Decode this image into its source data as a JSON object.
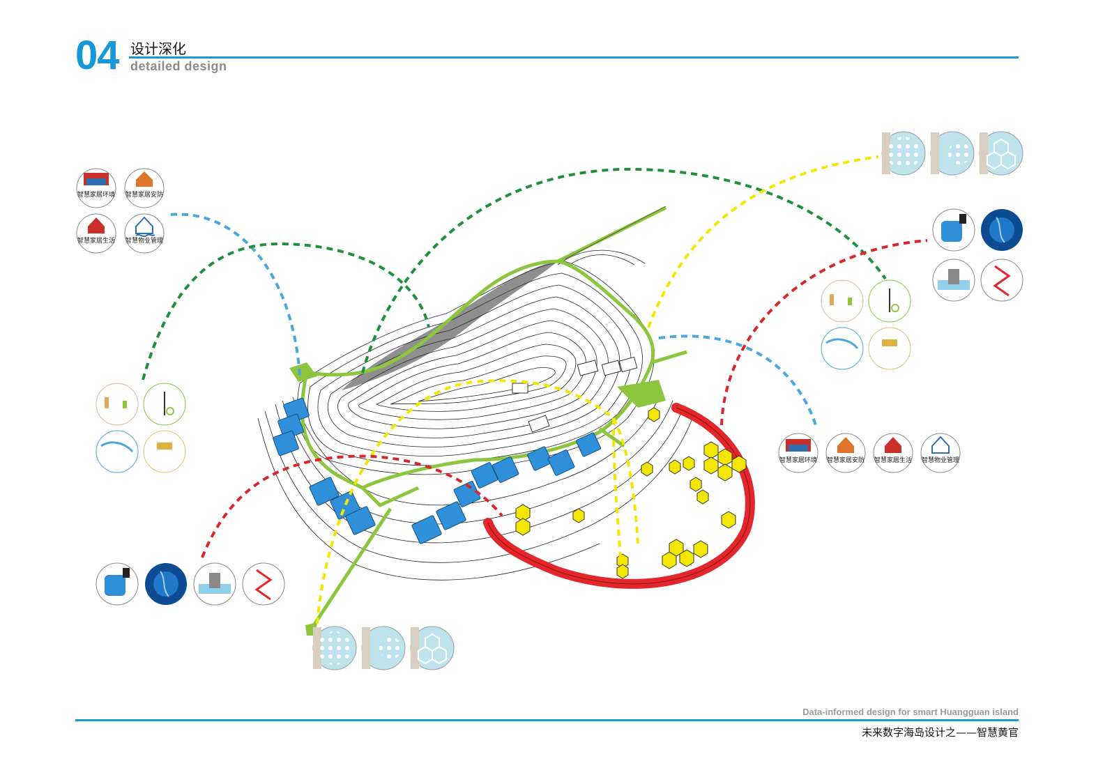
{
  "header": {
    "number": "04",
    "title_cn": "设计深化",
    "title_en": "detailed design"
  },
  "footer": {
    "title_en": "Data-informed design for smart Huangguan island",
    "title_cn": "未来数字海岛设计之——智慧黄官"
  },
  "smart_home_labels": {
    "environment": "智慧家居环境",
    "security": "智慧家居安防",
    "life": "智慧家居生活",
    "property": "智慧物业管理"
  },
  "colors": {
    "accent_blue": "#1597d8",
    "path_green": "#8cc63f",
    "ring_red": "#e3262b",
    "hex_yellow": "#f3e600",
    "house_blue": "#2f8fd8",
    "line_blue": "#4ba6dc",
    "line_green": "#1e8f3e",
    "line_yellow": "#f3e600",
    "line_red": "#d9262b"
  },
  "icons": {
    "pattern_grid": "hexagon-pattern-icon",
    "water_tank": "water-tank-icon",
    "ocean": "ocean-icon",
    "tidal": "tidal-generator-icon",
    "lift": "scissor-lift-icon"
  }
}
